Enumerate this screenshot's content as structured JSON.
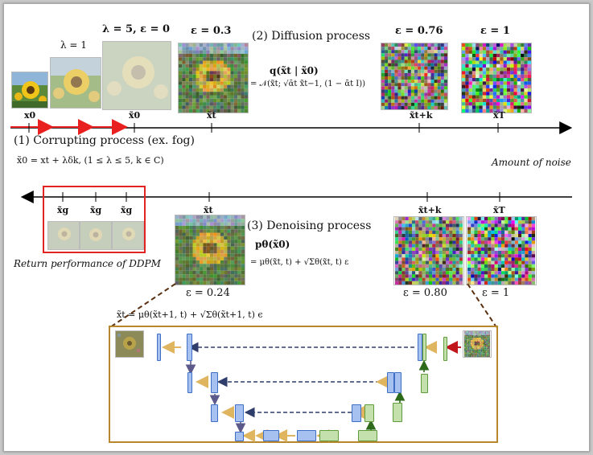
{
  "top_labels": {
    "lambda1": "λ = 1",
    "lambda5": "λ = 5, ε = 0",
    "eps03": "ε = 0.3",
    "diffusion": "(2) Diffusion process",
    "eps076": "ε = 0.76",
    "eps1_top": "ε = 1"
  },
  "diffusion_formula": {
    "line1": "q(x̃t | x̃0)",
    "line2": "= 𝒩(x̃t; √ᾱt x̃t−1, (1 − ᾱt I))"
  },
  "top_axis": {
    "ticks": [
      "x0",
      "x̃0",
      "x̃t",
      "x̃t+k",
      "x̃T"
    ]
  },
  "corrupt": {
    "title": "(1) Corrupting process (ex. fog)",
    "formula": "x̃0 = xt + λδk,  (1 ≤ λ ≤ 5, k ∈ C)"
  },
  "amount_noise": "Amount of noise",
  "bottom_axis": {
    "ticks": [
      "x̃g",
      "x̃g",
      "x̃g",
      "x̃t",
      "x̃t+k",
      "x̃T"
    ]
  },
  "return_label": "Return performance of DDPM",
  "denoise": {
    "title": "(3) Denoising process",
    "line1": "pθ(x̃0)",
    "line2": "= μθ(x̃t, t) + √Σθ(x̃t, t) ε"
  },
  "bottom_eps": {
    "e024": "ε = 0.24",
    "e080": "ε = 0.80",
    "e1": "ε = 1"
  },
  "unet_formula": "x̃t = μθ(x̃t+1, t) + √Σθ(x̃t+1, t) ϵ",
  "colors": {
    "red_arrow": "#e8201f",
    "red_box": "#e32222",
    "unet_frame": "#b8862c",
    "blue_block": "#a6c1ef",
    "green_block": "#c4e1ad",
    "orange_arrow": "#e0b560"
  }
}
